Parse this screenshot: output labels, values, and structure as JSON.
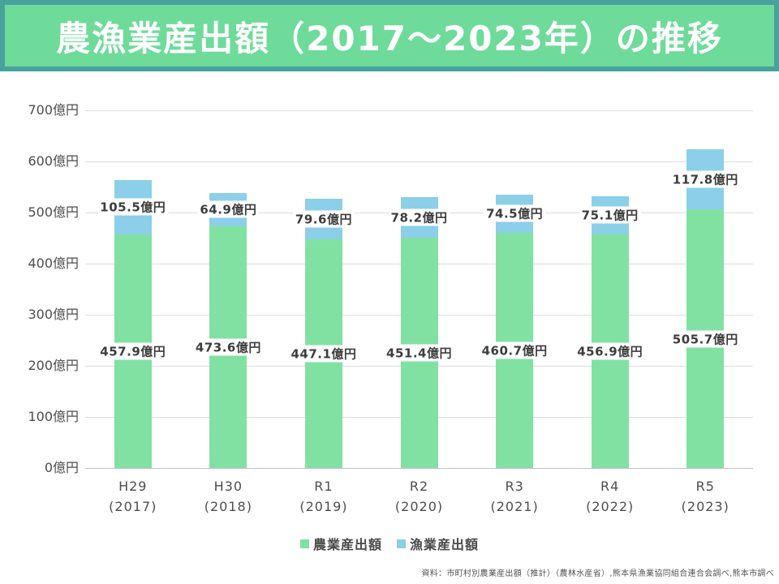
{
  "title": "農漁業産出額（2017～2023年）の推移",
  "colors": {
    "banner_bg": "#6edb9a",
    "banner_border": "#47a29c",
    "agriculture": "#81e1a3",
    "fishery": "#8ccfe9",
    "gridline": "#dcdcdc",
    "axis_line": "#c2c2c2",
    "axis_text": "#4d4d4d",
    "data_label_text": "#3d3d3d"
  },
  "chart_data": {
    "type": "bar",
    "stacked": true,
    "title": "農漁業産出額（2017～2023年）の推移",
    "unit": "億円",
    "categories": [
      {
        "era": "H29",
        "year": "(2017)"
      },
      {
        "era": "H30",
        "year": "(2018)"
      },
      {
        "era": "R1",
        "year": "(2019)"
      },
      {
        "era": "R2",
        "year": "(2020)"
      },
      {
        "era": "R3",
        "year": "(2021)"
      },
      {
        "era": "R4",
        "year": "(2022)"
      },
      {
        "era": "R5",
        "year": "(2023)"
      }
    ],
    "series": [
      {
        "key": "agriculture",
        "name": "農業産出額",
        "color_key": "agriculture",
        "values": [
          457.9,
          473.6,
          447.1,
          451.4,
          460.7,
          456.9,
          505.7
        ]
      },
      {
        "key": "fishery",
        "name": "漁業産出額",
        "color_key": "fishery",
        "values": [
          105.5,
          64.9,
          79.6,
          78.2,
          74.5,
          75.1,
          117.8
        ]
      }
    ],
    "y_ticks": [
      0,
      100,
      200,
      300,
      400,
      500,
      600,
      700
    ],
    "ylim": [
      0,
      700
    ],
    "grid": true,
    "legend_position": "bottom"
  },
  "source": "資料：市町村別農業産出額（推計）（農林水産省）,熊本県漁業協同組合連合会調べ,熊本市調べ"
}
